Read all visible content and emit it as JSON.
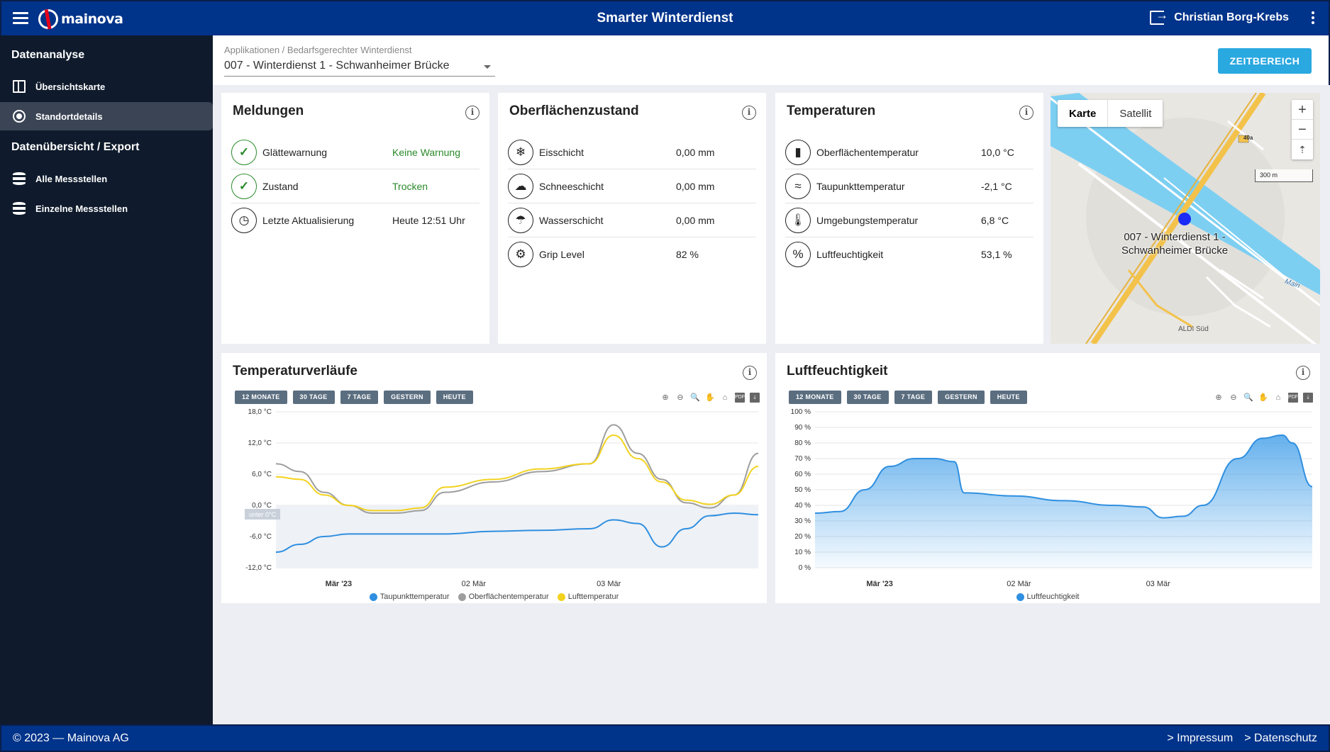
{
  "header": {
    "logo_text": "mainova",
    "title": "Smarter Winterdienst",
    "user_name": "Christian Borg-Krebs"
  },
  "sidebar": {
    "section1": "Datenanalyse",
    "items1": [
      {
        "label": "Übersichtskarte",
        "icon": "map-icon"
      },
      {
        "label": "Standortdetails",
        "icon": "location-target-icon",
        "active": true
      }
    ],
    "section2": "Datenübersicht / Export",
    "items2": [
      {
        "label": "Alle Messstellen",
        "icon": "database-icon"
      },
      {
        "label": "Einzelne Messstellen",
        "icon": "database-icon"
      }
    ]
  },
  "subheader": {
    "breadcrumb": "Applikationen / Bedarfsgerechter Winterdienst",
    "selected_station": "007 - Winterdienst 1 - Schwanheimer Brücke",
    "time_button": "ZEITBEREICH"
  },
  "meldungen": {
    "title": "Meldungen",
    "rows": [
      {
        "label": "Glättewarnung",
        "value": "Keine Warnung",
        "icon": "check-circle-icon"
      },
      {
        "label": "Zustand",
        "value": "Trocken",
        "icon": "check-circle-icon"
      },
      {
        "label": "Letzte Aktualisierung",
        "value": "Heute 12:51 Uhr",
        "icon": "clock-icon"
      }
    ]
  },
  "oberflaeche": {
    "title": "Oberflächenzustand",
    "rows": [
      {
        "label": "Eisschicht",
        "value": "0,00 mm",
        "icon": "ice-layer-icon"
      },
      {
        "label": "Schneeschicht",
        "value": "0,00 mm",
        "icon": "snow-layer-icon"
      },
      {
        "label": "Wasserschicht",
        "value": "0,00 mm",
        "icon": "water-layer-icon"
      },
      {
        "label": "Grip Level",
        "value": "82 %",
        "icon": "grip-tire-icon"
      }
    ]
  },
  "temperaturen": {
    "title": "Temperaturen",
    "rows": [
      {
        "label": "Oberflächentemperatur",
        "value": "10,0 °C",
        "icon": "surface-thermometer-icon"
      },
      {
        "label": "Taupunkttemperatur",
        "value": "-2,1 °C",
        "icon": "dewpoint-icon"
      },
      {
        "label": "Umgebungstemperatur",
        "value": "6,8 °C",
        "icon": "thermometer-icon"
      },
      {
        "label": "Luftfeuchtigkeit",
        "value": "53,1 %",
        "icon": "percent-icon"
      }
    ]
  },
  "map": {
    "tab_map": "Karte",
    "tab_satellite": "Satellit",
    "zoom_in": "+",
    "zoom_out": "−",
    "scale": "300 m",
    "marker_label_line1": "007 - Winterdienst 1 -",
    "marker_label_line2": "Schwanheimer Brücke",
    "river": "Main",
    "poi": "ALDI Süd",
    "road": "40a"
  },
  "time_pills": [
    "12 MONATE",
    "30 TAGE",
    "7 TAGE",
    "GESTERN",
    "HEUTE"
  ],
  "chart_temp_title": "Temperaturverläufe",
  "chart_hum_title": "Luftfeuchtigkeit",
  "chart_data": [
    {
      "type": "line",
      "title": "Temperaturverläufe",
      "x_ticks": [
        "Mär '23",
        "02 Mär",
        "03 Mär"
      ],
      "y_ticks": [
        "18,0 °C",
        "12,0 °C",
        "6,0 °C",
        "0,0 °C",
        "-6,0 °C",
        "-12,0 °C"
      ],
      "ylim": [
        -12,
        18
      ],
      "band_label": "unter 0°C",
      "x": [
        0,
        0.05,
        0.1,
        0.15,
        0.2,
        0.25,
        0.3,
        0.35,
        0.45,
        0.55,
        0.65,
        0.7,
        0.75,
        0.8,
        0.85,
        0.9,
        0.95,
        1.0
      ],
      "series": [
        {
          "name": "Taupunkttemperatur",
          "color": "#2f8fe0",
          "values": [
            -9,
            -7.5,
            -6,
            -5.5,
            -5.5,
            -5.5,
            -5.5,
            -5.5,
            -5,
            -4.8,
            -4.5,
            -2.8,
            -3.5,
            -8,
            -4.5,
            -2,
            -1.5,
            -1.8
          ]
        },
        {
          "name": "Oberflächentemperatur",
          "color": "#9e9e9e",
          "values": [
            8,
            6.5,
            2.5,
            0,
            -1.5,
            -1.5,
            -1,
            2.5,
            4.5,
            6.5,
            8,
            15.5,
            10,
            5,
            0.5,
            -0.5,
            2,
            10
          ]
        },
        {
          "name": "Lufttemperatur",
          "color": "#f2d21e",
          "values": [
            5.5,
            5,
            2,
            0,
            -1,
            -1,
            -0.5,
            3.5,
            5,
            7,
            8,
            13.5,
            9,
            4.5,
            1,
            0.2,
            2,
            7.5
          ]
        }
      ]
    },
    {
      "type": "area",
      "title": "Luftfeuchtigkeit",
      "x_ticks": [
        "Mär '23",
        "02 Mär",
        "03 Mär"
      ],
      "y_ticks": [
        "100 %",
        "90 %",
        "80 %",
        "70 %",
        "60 %",
        "50 %",
        "40 %",
        "30 %",
        "20 %",
        "10 %",
        "0 %"
      ],
      "ylim": [
        0,
        100
      ],
      "x": [
        0,
        0.05,
        0.1,
        0.15,
        0.2,
        0.24,
        0.28,
        0.3,
        0.4,
        0.5,
        0.6,
        0.66,
        0.7,
        0.74,
        0.78,
        0.85,
        0.9,
        0.94,
        0.96,
        1.0
      ],
      "series": [
        {
          "name": "Luftfeuchtigkeit",
          "color": "#2f8fe0",
          "values": [
            35,
            36,
            50,
            65,
            70,
            70,
            68,
            48,
            46,
            43,
            40,
            39,
            32,
            33,
            40,
            70,
            83,
            85,
            80,
            52
          ]
        }
      ]
    }
  ]
}
